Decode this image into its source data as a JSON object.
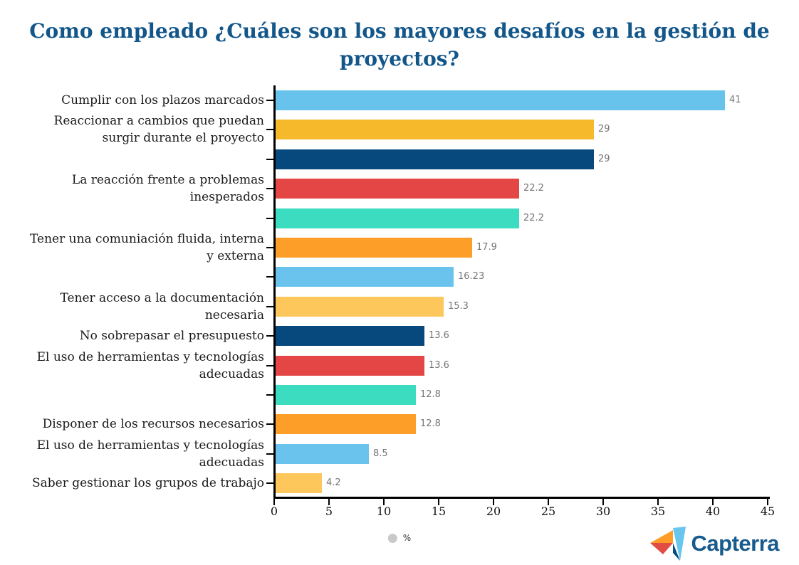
{
  "title": "Como empleado ¿Cuáles son los mayores desafíos en la gestión de proyectos?",
  "chart_data": {
    "type": "bar",
    "orientation": "horizontal",
    "unit": "%",
    "title": "Como empleado ¿Cuáles son los mayores desafíos en la gestión de proyectos?",
    "xlabel": "",
    "ylabel": "",
    "xlim": [
      0,
      45
    ],
    "x_ticks": [
      0,
      5,
      10,
      15,
      20,
      25,
      30,
      35,
      40,
      45
    ],
    "grid": false,
    "legend_position": "bottom-center",
    "legend": [
      {
        "label": "%",
        "color": "#c9c9c9"
      }
    ],
    "rows": [
      {
        "label": "Cumplir con los plazos marcados",
        "value": 41,
        "color": "#67C3EC"
      },
      {
        "label": "Reaccionar a cambios que puedan surgir durante el proyecto",
        "value": 29,
        "color": "#F5B92B"
      },
      {
        "label": "",
        "value": 29,
        "color": "#07497D"
      },
      {
        "label": "La reacción frente a problemas inesperados",
        "value": 22.2,
        "color": "#E44545"
      },
      {
        "label": "",
        "value": 22.2,
        "color": "#3BDCC0"
      },
      {
        "label": "Tener una comuniación fluida, interna y externa",
        "value": 17.9,
        "color": "#FD9E28"
      },
      {
        "label": "",
        "value": 16.23,
        "color": "#6AC3EC"
      },
      {
        "label": "Tener acceso a la documentación necesaria",
        "value": 15.3,
        "color": "#FEC75C"
      },
      {
        "label": "No sobrepasar el presupuesto",
        "value": 13.6,
        "color": "#07497D"
      },
      {
        "label": "El uso de herramientas y tecnologías adecuadas",
        "value": 13.6,
        "color": "#E44545"
      },
      {
        "label": "",
        "value": 12.8,
        "color": "#3BDCC0"
      },
      {
        "label": "Disponer de los recursos necesarios",
        "value": 12.8,
        "color": "#FD9E28"
      },
      {
        "label": "El uso de herramientas y tecnologías adecuadas",
        "value": 8.5,
        "color": "#6AC3EC"
      },
      {
        "label": "Saber gestionar los grupos de trabajo",
        "value": 4.2,
        "color": "#FEC75C"
      }
    ]
  },
  "footer": {
    "legend_label": "%",
    "brand": "Capterra"
  },
  "colors": {
    "title": "#12568A",
    "axis": "#000000",
    "value_label": "#757575",
    "brand_text": "#175A8C",
    "logo_orange": "#FF9D28",
    "logo_red": "#E24C44",
    "logo_lightblue": "#68C5ED",
    "logo_navy": "#044D80"
  }
}
